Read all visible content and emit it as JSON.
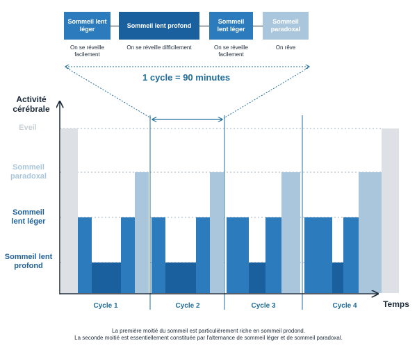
{
  "legend": {
    "stages": [
      {
        "label": "Sommeil lent léger",
        "caption": "On se réveille facilement",
        "color": "#2b7bbd"
      },
      {
        "label": "Sommeil lent profond",
        "caption": "On se réveille difficilement",
        "color": "#1a5f9e"
      },
      {
        "label": "Sommeil lent léger",
        "caption": "On se réveille facilement",
        "color": "#2b7bbd"
      },
      {
        "label": "Sommeil paradoxal",
        "caption": "On rêve",
        "color": "#a9c6dc"
      }
    ]
  },
  "cycle_note": "1 cycle = 90 minutes",
  "chart_data": {
    "type": "diagram",
    "y_title": "Activité cérébrale",
    "x_title": "Temps",
    "levels": [
      {
        "name": "Eveil",
        "color": "#c9d0d6"
      },
      {
        "name": "Sommeil paradoxal",
        "color": "#a9c6dc"
      },
      {
        "name": "Sommeil lent léger",
        "color": "#1f5f9a"
      },
      {
        "name": "Sommeil lent profond",
        "color": "#1f5f9a"
      }
    ],
    "cycles": [
      "Cycle 1",
      "Cycle 2",
      "Cycle 3",
      "Cycle 4"
    ]
  },
  "footnote": {
    "line1": "La première moitié du sommeil est particulièrement riche en sommeil prodond.",
    "line2": "La seconde moitié est essentiellement constituée par l'alternance de sommeil léger et de sommeil paradoxal."
  }
}
